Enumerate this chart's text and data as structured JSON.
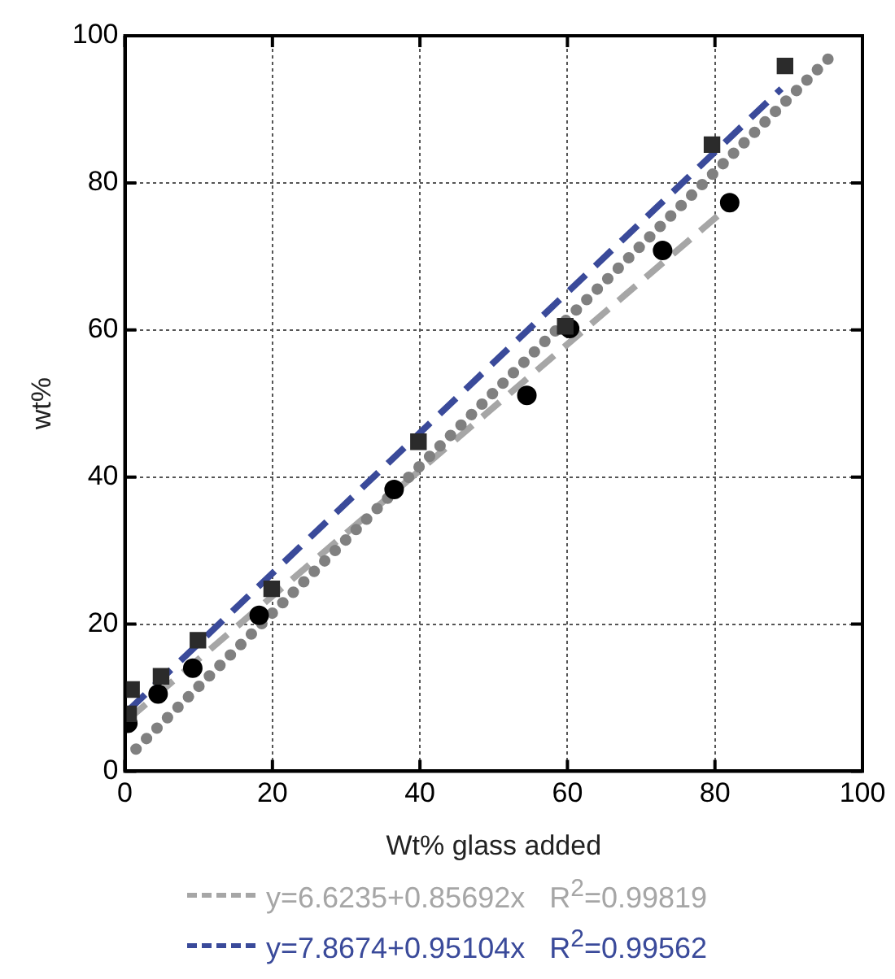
{
  "chart_data": {
    "type": "scatter",
    "xlabel": "Wt% glass added",
    "ylabel": "wt%",
    "xlim": [
      0,
      100
    ],
    "ylim": [
      0,
      100
    ],
    "xticks": [
      0,
      20,
      40,
      60,
      80,
      100
    ],
    "yticks": [
      0,
      20,
      40,
      60,
      80,
      100
    ],
    "grid": true,
    "legend": "bottom",
    "series": [
      {
        "type": "line",
        "color": "#808080",
        "line_style": "dotted",
        "marker": "none",
        "x": [
          1.5,
          96.5
        ],
        "values": [
          3,
          98
        ]
      },
      {
        "type": "line",
        "name": "y=6.6235+0.85692x   R$^{2}$=0.99819",
        "color": "#a6a6a6",
        "line_style": "dashed",
        "marker": "none",
        "x": [
          0.5,
          82
        ],
        "values": [
          7.1,
          76.9
        ]
      },
      {
        "type": "line",
        "name": "y=7.8674+0.95104x   R$^{2}$=0.99562",
        "color": "#3a4a9a",
        "line_style": "dashed",
        "marker": "none",
        "x": [
          0.5,
          89
        ],
        "values": [
          8.3,
          92.8
        ]
      },
      {
        "type": "scatter",
        "color": "#000000",
        "marker": "circle",
        "x": [
          0.4,
          4.5,
          9.2,
          18.2,
          36.5,
          54.5,
          60.3,
          72.9,
          82
        ],
        "values": [
          6.5,
          10.5,
          14.0,
          21.2,
          38.3,
          51.1,
          60.2,
          70.8,
          77.3
        ]
      },
      {
        "type": "scatter",
        "color": "#2b2b2b",
        "marker": "square",
        "x": [
          0.5,
          0.9,
          4.9,
          9.9,
          19.9,
          39.8,
          59.7,
          79.6,
          89.5
        ],
        "values": [
          7.8,
          11.1,
          12.9,
          17.8,
          24.8,
          44.8,
          60.5,
          85.2,
          95.9
        ]
      }
    ]
  }
}
